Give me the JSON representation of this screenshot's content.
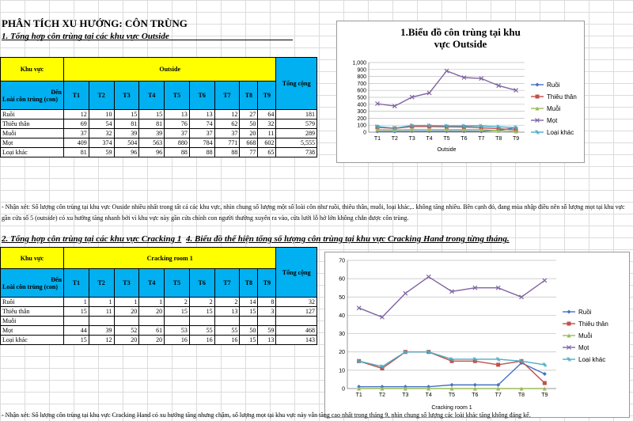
{
  "title": "PHÂN TÍCH XU HƯỚNG: CÔN TRÙNG",
  "section1": {
    "heading": "1. Tổng hợp côn trùng tại các khu vực Outside",
    "hdr_area": "Khu vực",
    "area_name": "Outside",
    "hdr_total": "Tổng cộng",
    "hdr_den": "Đến",
    "hdr_insect": "Loài côn trùng (con)",
    "months": [
      "T1",
      "T2",
      "T3",
      "T4",
      "T5",
      "T6",
      "T7",
      "T8",
      "T9"
    ],
    "rows": [
      {
        "name": "Ruồi",
        "values": [
          "12",
          "10",
          "15",
          "15",
          "13",
          "13",
          "12",
          "27",
          "64"
        ],
        "total": "181"
      },
      {
        "name": "Thiêu thân",
        "values": [
          "69",
          "54",
          "81",
          "81",
          "76",
          "74",
          "62",
          "50",
          "32"
        ],
        "total": "579"
      },
      {
        "name": "Muỗi",
        "values": [
          "37",
          "32",
          "39",
          "39",
          "37",
          "37",
          "37",
          "20",
          "11"
        ],
        "total": "289"
      },
      {
        "name": "Mọt",
        "values": [
          "409",
          "374",
          "504",
          "563",
          "880",
          "784",
          "771",
          "668",
          "602"
        ],
        "total": "5,555"
      },
      {
        "name": "Loại khác",
        "values": [
          "81",
          "59",
          "96",
          "96",
          "88",
          "88",
          "88",
          "77",
          "65"
        ],
        "total": "738"
      }
    ],
    "note": "- Nhận xét: Số lượng côn trùng tại khu vực Ouside nhiều nhất trong tất cả các khu vực, nhìn chung số lượng một số loài côn như ruồi, thiêu thân, muỗi, loại khác,..  không tăng nhiều.  Bên cạnh đó, đang mùa nhập điều nên số lượng mọt tại khu vực gần cửa số 5 (outside)  có xu hướng tăng nhanh bởi vì khu vực này gần cửa chính con người  thường xuyên ra vào, cửa lưới lỗ hở lớn không chắn được côn trùng."
  },
  "section2": {
    "heading": "2. Tổng hợp côn trùng tại các khu vực Cracking 1",
    "heading4": "4. Biểu đồ thể hiện tổng số lượng côn trùng tại khu vực Cracking Hand trong từng tháng.",
    "hdr_area": "Khu vực",
    "area_name": "Cracking room 1",
    "hdr_total": "Tổng cộng",
    "hdr_den": "Đến",
    "hdr_insect": "Loài côn trùng (con)",
    "months": [
      "T1",
      "T2",
      "T3",
      "T4",
      "T5",
      "T6",
      "T7",
      "T8",
      "T9"
    ],
    "rows": [
      {
        "name": "Ruồi",
        "values": [
          "1",
          "1",
          "1",
          "1",
          "2",
          "2",
          "2",
          "14",
          "8"
        ],
        "total": "32"
      },
      {
        "name": "Thiêu thân",
        "values": [
          "15",
          "11",
          "20",
          "20",
          "15",
          "15",
          "13",
          "15",
          "3"
        ],
        "total": "127"
      },
      {
        "name": "Muỗi",
        "values": [
          "",
          "",
          "",
          "",
          "",
          "",
          "",
          "",
          ""
        ],
        "total": ""
      },
      {
        "name": "Mọt",
        "values": [
          "44",
          "39",
          "52",
          "61",
          "53",
          "55",
          "55",
          "50",
          "59"
        ],
        "total": "468"
      },
      {
        "name": "Loại khác",
        "values": [
          "15",
          "12",
          "20",
          "20",
          "16",
          "16",
          "16",
          "15",
          "13"
        ],
        "total": "143"
      }
    ],
    "note": "- Nhận xét: Số lượng côn trùng tại khu vực Cracking Hand có xu hướng tăng nhưng chậm, số lượng mọt tại khu vực này vẫn tăng cao nhất trong tháng 9, nhìn chung số lượng các loài khác tăng không đáng kể."
  },
  "colors": {
    "yellow": "#ffff00",
    "cyan": "#00b0f0",
    "ruoi": "#4472c4",
    "thieu": "#c0504d",
    "muoi": "#9bbb59",
    "mot": "#8064a2",
    "khac": "#4bacc6"
  },
  "chart_data": [
    {
      "type": "line",
      "title": "1.Biểu đồ côn trùng tại khu vực Outside",
      "xlabel": "Outside",
      "ylabel": "",
      "categories": [
        "T1",
        "T2",
        "T3",
        "T4",
        "T5",
        "T6",
        "T7",
        "T8",
        "T9"
      ],
      "ylim": [
        0,
        1000
      ],
      "yticks": [
        "0",
        "100",
        "200",
        "300",
        "400",
        "500",
        "600",
        "700",
        "800",
        "900",
        "1,000"
      ],
      "series": [
        {
          "name": "Ruồi",
          "values": [
            12,
            10,
            15,
            15,
            13,
            13,
            12,
            27,
            64
          ]
        },
        {
          "name": "Thiêu thân",
          "values": [
            69,
            54,
            81,
            81,
            76,
            74,
            62,
            50,
            32
          ]
        },
        {
          "name": "Muỗi",
          "values": [
            37,
            32,
            39,
            39,
            37,
            37,
            37,
            20,
            11
          ]
        },
        {
          "name": "Mọt",
          "values": [
            409,
            374,
            504,
            563,
            880,
            784,
            771,
            668,
            602
          ]
        },
        {
          "name": "Loại khác",
          "values": [
            81,
            59,
            96,
            96,
            88,
            88,
            88,
            77,
            65
          ]
        }
      ]
    },
    {
      "type": "line",
      "title": "",
      "xlabel": "Cracking room 1",
      "ylabel": "",
      "categories": [
        "T1",
        "T2",
        "T3",
        "T4",
        "T5",
        "T6",
        "T7",
        "T8",
        "T9"
      ],
      "ylim": [
        0,
        70
      ],
      "yticks": [
        "0",
        "10",
        "20",
        "30",
        "40",
        "50",
        "60",
        "70"
      ],
      "series": [
        {
          "name": "Ruồi",
          "values": [
            1,
            1,
            1,
            1,
            2,
            2,
            2,
            14,
            8
          ]
        },
        {
          "name": "Thiêu thân",
          "values": [
            15,
            11,
            20,
            20,
            15,
            15,
            13,
            15,
            3
          ]
        },
        {
          "name": "Muỗi",
          "values": [
            0,
            0,
            0,
            0,
            0,
            0,
            0,
            0,
            0
          ]
        },
        {
          "name": "Mọt",
          "values": [
            44,
            39,
            52,
            61,
            53,
            55,
            55,
            50,
            59
          ]
        },
        {
          "name": "Loại khác",
          "values": [
            15,
            12,
            20,
            20,
            16,
            16,
            16,
            15,
            13
          ]
        }
      ]
    }
  ]
}
